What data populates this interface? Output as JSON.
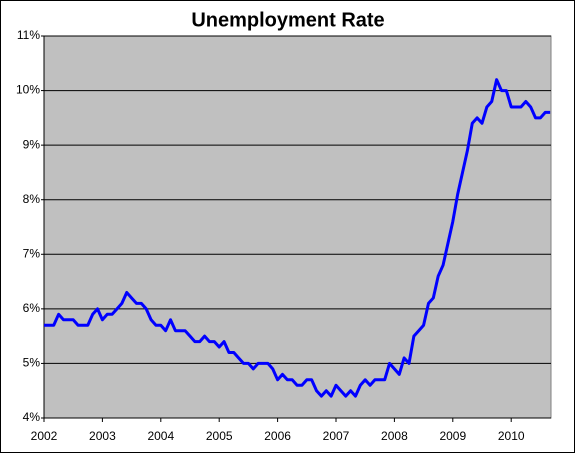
{
  "chart_data": {
    "type": "line",
    "title": "Unemployment Rate",
    "categories": [
      "2002",
      null,
      null,
      null,
      null,
      null,
      null,
      null,
      null,
      null,
      null,
      null,
      "2003",
      null,
      null,
      null,
      null,
      null,
      null,
      null,
      null,
      null,
      null,
      null,
      "2004",
      null,
      null,
      null,
      null,
      null,
      null,
      null,
      null,
      null,
      null,
      null,
      "2005",
      null,
      null,
      null,
      null,
      null,
      null,
      null,
      null,
      null,
      null,
      null,
      "2006",
      null,
      null,
      null,
      null,
      null,
      null,
      null,
      null,
      null,
      null,
      null,
      "2007",
      null,
      null,
      null,
      null,
      null,
      null,
      null,
      null,
      null,
      null,
      null,
      "2008",
      null,
      null,
      null,
      null,
      null,
      null,
      null,
      null,
      null,
      null,
      null,
      "2009",
      null,
      null,
      null,
      null,
      null,
      null,
      null,
      null,
      null,
      null,
      null,
      "2010",
      null,
      null,
      null,
      null,
      null,
      null,
      null,
      null
    ],
    "series": [
      {
        "name": "Unemployment Rate",
        "color": "#0000ff",
        "values": [
          5.7,
          5.7,
          5.7,
          5.9,
          5.8,
          5.8,
          5.8,
          5.7,
          5.7,
          5.7,
          5.9,
          6.0,
          5.8,
          5.9,
          5.9,
          6.0,
          6.1,
          6.3,
          6.2,
          6.1,
          6.1,
          6.0,
          5.8,
          5.7,
          5.7,
          5.6,
          5.8,
          5.6,
          5.6,
          5.6,
          5.5,
          5.4,
          5.4,
          5.5,
          5.4,
          5.4,
          5.3,
          5.4,
          5.2,
          5.2,
          5.1,
          5.0,
          5.0,
          4.9,
          5.0,
          5.0,
          5.0,
          4.9,
          4.7,
          4.8,
          4.7,
          4.7,
          4.6,
          4.6,
          4.7,
          4.7,
          4.5,
          4.4,
          4.5,
          4.4,
          4.6,
          4.5,
          4.4,
          4.5,
          4.4,
          4.6,
          4.7,
          4.6,
          4.7,
          4.7,
          4.7,
          5.0,
          4.9,
          4.8,
          5.1,
          5.0,
          5.5,
          5.6,
          5.7,
          6.1,
          6.2,
          6.6,
          6.8,
          7.2,
          7.6,
          8.1,
          8.5,
          8.9,
          9.4,
          9.5,
          9.4,
          9.7,
          9.8,
          10.2,
          10.0,
          10.0,
          9.7,
          9.7,
          9.7,
          9.8,
          9.7,
          9.5,
          9.5,
          9.6,
          9.6
        ]
      }
    ],
    "ylim": [
      4,
      11
    ],
    "yticks": [
      {
        "value": 4,
        "label": "4%"
      },
      {
        "value": 5,
        "label": "5%"
      },
      {
        "value": 6,
        "label": "6%"
      },
      {
        "value": 7,
        "label": "7%"
      },
      {
        "value": 8,
        "label": "8%"
      },
      {
        "value": 9,
        "label": "9%"
      },
      {
        "value": 10,
        "label": "10%"
      },
      {
        "value": 11,
        "label": "11%"
      }
    ],
    "grid": true
  }
}
